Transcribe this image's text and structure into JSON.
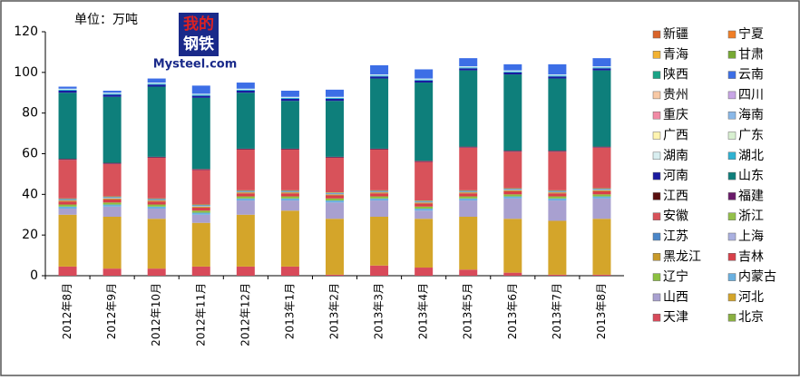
{
  "chart_data": {
    "type": "stacked_bar",
    "unit_label": "单位：万吨",
    "logo": {
      "top": "我的",
      "bottom": "钢铁",
      "site": "Mysteel.com"
    },
    "categories": [
      "2012年8月",
      "2012年9月",
      "2012年10月",
      "2012年11月",
      "2012年12月",
      "2013年1月",
      "2013年2月",
      "2013年3月",
      "2013年4月",
      "2013年5月",
      "2013年6月",
      "2013年7月",
      "2013年8月"
    ],
    "ylim": [
      0,
      120
    ],
    "yticks": [
      0,
      20,
      40,
      60,
      80,
      100,
      120
    ],
    "grid": false,
    "series": [
      {
        "name": "北京",
        "color": "#8ab040",
        "values": [
          0,
          0,
          0,
          0,
          0,
          0,
          0,
          0,
          0,
          0,
          0,
          0,
          0
        ]
      },
      {
        "name": "天津",
        "color": "#d84a5a",
        "values": [
          4.5,
          3.5,
          3.5,
          4.5,
          4.5,
          4.5,
          0.5,
          5,
          4,
          3,
          1.5,
          0.5,
          0.5
        ]
      },
      {
        "name": "河北",
        "color": "#d4a52a",
        "values": [
          25.5,
          25.5,
          24.5,
          21.5,
          25.5,
          27.5,
          27.5,
          24,
          24,
          26,
          26.5,
          26.5,
          27.5
        ]
      },
      {
        "name": "山西",
        "color": "#a8a0d0",
        "values": [
          3,
          5,
          5,
          4,
          7,
          5,
          8,
          8,
          4,
          8,
          10,
          10,
          10
        ]
      },
      {
        "name": "内蒙古",
        "color": "#6ab0e0",
        "values": [
          1,
          1,
          1,
          1,
          1,
          1,
          1,
          1,
          1,
          1,
          1,
          1,
          1
        ]
      },
      {
        "name": "辽宁",
        "color": "#8cc040",
        "values": [
          1,
          1,
          1,
          1,
          1,
          1,
          1,
          1,
          1,
          1,
          1,
          1,
          1
        ]
      },
      {
        "name": "吉林",
        "color": "#d8404a",
        "values": [
          1.5,
          1.5,
          1.5,
          1.5,
          1.5,
          1.5,
          1.5,
          1.5,
          1.5,
          1.5,
          1.5,
          1.5,
          1.5
        ]
      },
      {
        "name": "黑龙江",
        "color": "#c89a2a",
        "values": [
          0.5,
          0.5,
          0.5,
          0.5,
          0.5,
          0.5,
          0.5,
          0.5,
          0.5,
          0.5,
          0.5,
          0.5,
          0.5
        ]
      },
      {
        "name": "上海",
        "color": "#aab0e0",
        "values": [
          0.3,
          0.3,
          0.3,
          0.3,
          0.3,
          0.3,
          0.3,
          0.3,
          0.3,
          0.3,
          0.3,
          0.3,
          0.3
        ]
      },
      {
        "name": "江苏",
        "color": "#4a86c8",
        "values": [
          0.4,
          0.4,
          0.4,
          0.4,
          0.4,
          0.4,
          0.4,
          0.4,
          0.4,
          0.4,
          0.4,
          0.4,
          0.4
        ]
      },
      {
        "name": "浙江",
        "color": "#94c04a",
        "values": [
          0.3,
          0.3,
          0.3,
          0.3,
          0.3,
          0.3,
          0.3,
          0.3,
          0.3,
          0.3,
          0.3,
          0.3,
          0.3
        ]
      },
      {
        "name": "安徽",
        "color": "#d8525a",
        "values": [
          19,
          16,
          20,
          17,
          20,
          20,
          17,
          20,
          19,
          21,
          18,
          19,
          20
        ]
      },
      {
        "name": "福建",
        "color": "#6a1a6a",
        "values": [
          0.3,
          0.3,
          0.3,
          0.3,
          0.3,
          0.3,
          0.3,
          0.3,
          0.3,
          0.3,
          0.3,
          0.3,
          0.3
        ]
      },
      {
        "name": "江西",
        "color": "#5a0f0f",
        "values": [
          0.2,
          0.2,
          0.2,
          0.2,
          0.2,
          0.2,
          0.2,
          0.2,
          0.2,
          0.2,
          0.2,
          0.2,
          0.2
        ]
      },
      {
        "name": "山东",
        "color": "#0e7f7b",
        "values": [
          32.5,
          32.5,
          34.5,
          35,
          27.5,
          23.5,
          27.5,
          34.5,
          38.5,
          37.5,
          37.5,
          35.5,
          37.5
        ]
      },
      {
        "name": "河南",
        "color": "#1a1aa0",
        "values": [
          1,
          1,
          1,
          1,
          1,
          1,
          1,
          1,
          1,
          1,
          1,
          1,
          1
        ]
      },
      {
        "name": "湖北",
        "color": "#2fb2d2",
        "values": [
          0.5,
          0.5,
          0.5,
          0.5,
          0.5,
          0.5,
          0.5,
          0.5,
          0.5,
          0.5,
          0.5,
          0.5,
          0.5
        ]
      },
      {
        "name": "湖南",
        "color": "#d8eef0",
        "values": [
          0.5,
          0.5,
          0.5,
          0.5,
          0.5,
          0.5,
          0.5,
          0.5,
          0.5,
          0.5,
          0.5,
          0.5,
          0.5
        ]
      },
      {
        "name": "广东",
        "color": "#d8f0d0",
        "values": [
          0,
          0,
          0,
          0,
          0,
          0,
          0,
          0,
          0,
          0,
          0,
          0,
          0
        ]
      },
      {
        "name": "广西",
        "color": "#fff4b0",
        "values": [
          0,
          0,
          0,
          0,
          0,
          0,
          0,
          0,
          0,
          0,
          0,
          0,
          0
        ]
      },
      {
        "name": "海南",
        "color": "#8ab8e8",
        "values": [
          0,
          0,
          0,
          0,
          0,
          0,
          0,
          0,
          0,
          0,
          0,
          0,
          0
        ]
      },
      {
        "name": "重庆",
        "color": "#f28aa5",
        "values": [
          0,
          0,
          0,
          0,
          0,
          0,
          0,
          0,
          0,
          0,
          0,
          0,
          0
        ]
      },
      {
        "name": "四川",
        "color": "#c8a5e6",
        "values": [
          0,
          0,
          0,
          0,
          0,
          0,
          0,
          0,
          0,
          0,
          0,
          0,
          0
        ]
      },
      {
        "name": "贵州",
        "color": "#f8c9a5",
        "values": [
          0,
          0,
          0,
          0,
          0,
          0,
          0,
          0,
          0,
          0,
          0,
          0,
          0
        ]
      },
      {
        "name": "云南",
        "color": "#3c6ee6",
        "values": [
          1,
          1,
          2,
          4,
          3,
          3,
          3.5,
          4.5,
          4.5,
          4,
          3,
          5,
          4
        ]
      },
      {
        "name": "陕西",
        "color": "#1aa386",
        "values": [
          0,
          0,
          0,
          0,
          0,
          0,
          0,
          0,
          0,
          0,
          0,
          0,
          0
        ]
      },
      {
        "name": "甘肃",
        "color": "#76a933",
        "values": [
          0,
          0,
          0,
          0,
          0,
          0,
          0,
          0,
          0,
          0,
          0,
          0,
          0
        ]
      },
      {
        "name": "青海",
        "color": "#f2b233",
        "values": [
          0,
          0,
          0,
          0,
          0,
          0,
          0,
          0,
          0,
          0,
          0,
          0,
          0
        ]
      },
      {
        "name": "宁夏",
        "color": "#f07e26",
        "values": [
          0,
          0,
          0,
          0,
          0,
          0,
          0,
          0,
          0,
          0,
          0,
          0,
          0
        ]
      },
      {
        "name": "新疆",
        "color": "#d9642a",
        "values": [
          0,
          0,
          0,
          0,
          0,
          0,
          0,
          0,
          0,
          0,
          0,
          0,
          0
        ]
      }
    ]
  }
}
